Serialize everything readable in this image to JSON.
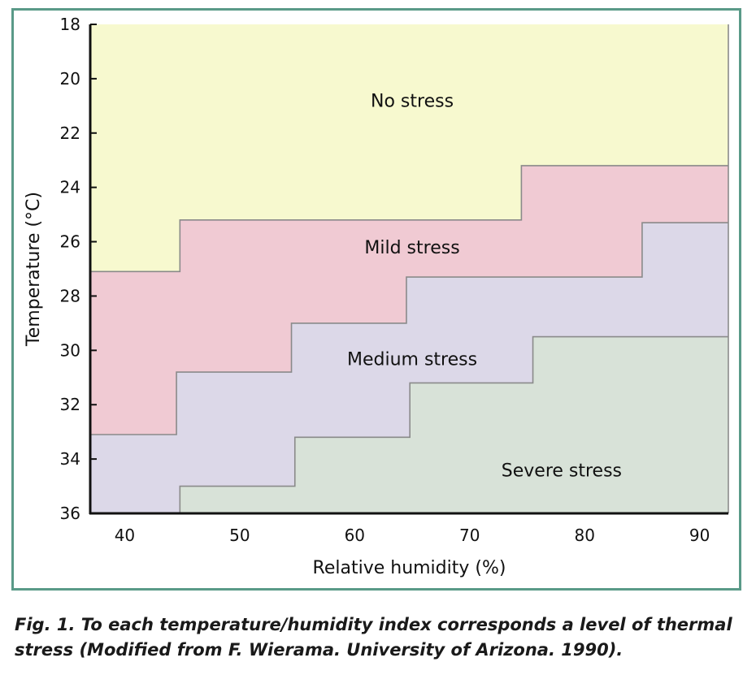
{
  "chart_data": {
    "type": "area",
    "xlabel": "Relative humidity (%)",
    "ylabel": "Temperature (°C)",
    "xlim": [
      37,
      92.5
    ],
    "ylim": [
      36,
      18
    ],
    "x_ticks": [
      40,
      50,
      60,
      70,
      80,
      90
    ],
    "y_ticks": [
      18,
      20,
      22,
      24,
      26,
      28,
      30,
      32,
      34,
      36
    ],
    "grid": false,
    "zones": [
      {
        "name": "No stress",
        "color": "#f7f9cf"
      },
      {
        "name": "Mild stress",
        "color": "#f0cad3"
      },
      {
        "name": "Medium stress",
        "color": "#dcd8e8"
      },
      {
        "name": "Severe stress",
        "color": "#d8e2d8"
      }
    ],
    "boundaries": [
      {
        "between": "No stress / Mild stress",
        "points": [
          [
            37,
            27.1
          ],
          [
            44.8,
            27.1
          ],
          [
            44.8,
            25.2
          ],
          [
            74.5,
            25.2
          ],
          [
            74.5,
            23.2
          ],
          [
            92.5,
            23.2
          ]
        ]
      },
      {
        "between": "Mild stress / Medium stress",
        "points": [
          [
            37,
            33.1
          ],
          [
            44.5,
            33.1
          ],
          [
            44.5,
            30.8
          ],
          [
            54.5,
            30.8
          ],
          [
            54.5,
            29.0
          ],
          [
            64.5,
            29.0
          ],
          [
            64.5,
            27.3
          ],
          [
            85,
            27.3
          ],
          [
            85,
            25.3
          ],
          [
            92.5,
            25.3
          ]
        ]
      },
      {
        "between": "Medium stress / Severe stress",
        "points": [
          [
            44.8,
            36
          ],
          [
            44.8,
            35.0
          ],
          [
            54.8,
            35.0
          ],
          [
            54.8,
            33.2
          ],
          [
            64.8,
            33.2
          ],
          [
            64.8,
            31.2
          ],
          [
            75.5,
            31.2
          ],
          [
            75.5,
            29.5
          ],
          [
            92.5,
            29.5
          ]
        ]
      }
    ],
    "labels": [
      {
        "text": "No stress",
        "x": 65,
        "y": 20.8
      },
      {
        "text": "Mild stress",
        "x": 65,
        "y": 26.2
      },
      {
        "text": "Medium stress",
        "x": 65,
        "y": 30.3
      },
      {
        "text": "Severe stress",
        "x": 78,
        "y": 34.4
      }
    ]
  },
  "caption": "Fig. 1. To each temperature/humidity index corresponds a level of thermal stress (Modified from F. Wierama. University of Arizona. 1990)."
}
